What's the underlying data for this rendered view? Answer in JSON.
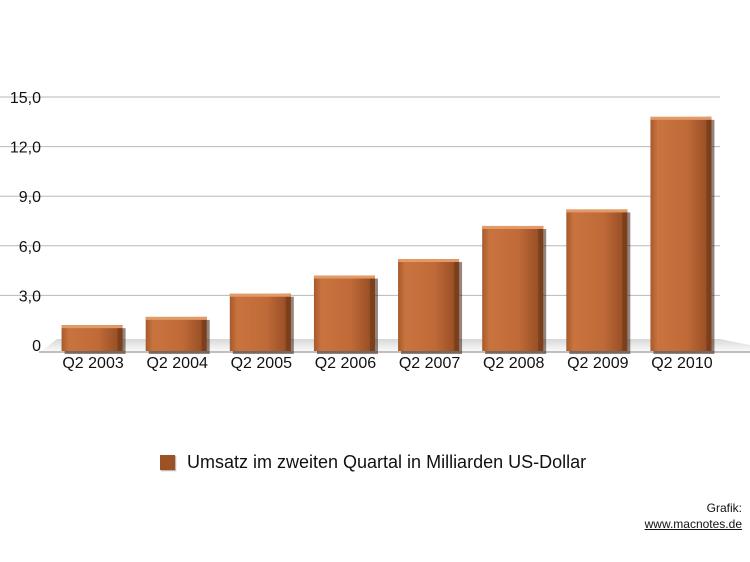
{
  "chart_data": {
    "type": "bar",
    "categories": [
      "Q2 2003",
      "Q2 2004",
      "Q2 2005",
      "Q2 2006",
      "Q2 2007",
      "Q2 2008",
      "Q2 2009",
      "Q2 2010"
    ],
    "values": [
      1.2,
      1.7,
      3.1,
      4.2,
      5.2,
      7.2,
      8.2,
      13.8
    ],
    "ylim": [
      0,
      15
    ],
    "yticks": [
      0,
      3,
      6,
      9,
      12,
      15
    ],
    "ytick_labels": [
      "0",
      "3,0",
      "6,0",
      "9,0",
      "12,0",
      "15,0"
    ],
    "grid": true,
    "legend_position": "bottom",
    "series": [
      {
        "name": "Umsatz im zweiten Quartal in Milliarden US-Dollar",
        "color": "#c46f3e"
      }
    ]
  },
  "credit": {
    "label": "Grafik:",
    "link": "www.macnotes.de"
  }
}
